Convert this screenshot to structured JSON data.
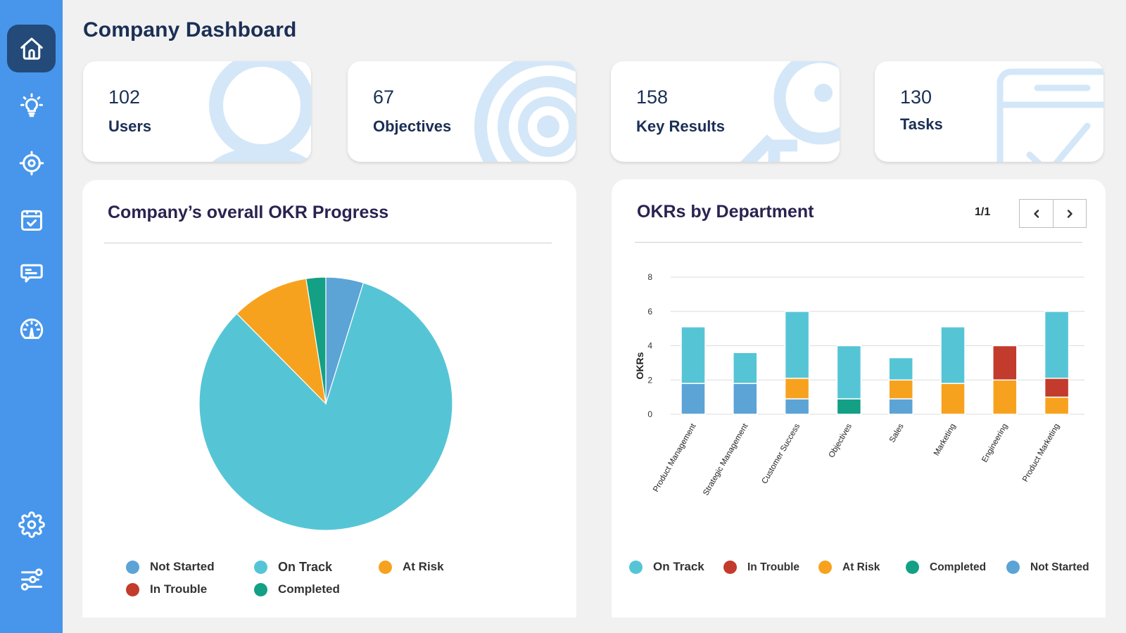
{
  "sidebar": {
    "items": [
      {
        "id": "home",
        "icon": "home-icon",
        "active": true
      },
      {
        "id": "ideas",
        "icon": "lightbulb-icon",
        "active": false
      },
      {
        "id": "objectives",
        "icon": "target-icon",
        "active": false
      },
      {
        "id": "tasks",
        "icon": "calendar-check-icon",
        "active": false
      },
      {
        "id": "feedback",
        "icon": "chat-icon",
        "active": false
      },
      {
        "id": "performance",
        "icon": "gauge-icon",
        "active": false
      },
      {
        "id": "settings",
        "icon": "gear-icon",
        "active": false
      },
      {
        "id": "preferences",
        "icon": "sliders-icon",
        "active": false
      }
    ]
  },
  "header": {
    "title": "Company Dashboard"
  },
  "stats": [
    {
      "value": "102",
      "label": "Users",
      "icon": "user-icon"
    },
    {
      "value": "67",
      "label": "Objectives",
      "icon": "target-icon"
    },
    {
      "value": "158",
      "label": "Key Results",
      "icon": "key-icon"
    },
    {
      "value": "130",
      "label": "Tasks",
      "icon": "task-calendar-icon"
    }
  ],
  "okr_progress": {
    "title": "Company’s overall OKR Progress"
  },
  "okrs_by_department": {
    "title": "OKRs by Department",
    "pager": {
      "text": "1/1",
      "prev": "previous-page",
      "next": "next-page"
    }
  },
  "colors": {
    "on_track": "#55c5d6",
    "in_trouble": "#c23b2c",
    "at_risk": "#f7a21e",
    "completed": "#13a085",
    "not_started": "#5ca3d6",
    "sidebar": "#4796eb",
    "sidebar_active": "#234a78"
  },
  "chart_data": [
    {
      "type": "pie",
      "title": "Company’s overall OKR Progress",
      "labels": [
        "Not Started",
        "On Track",
        "At Risk",
        "In Trouble",
        "Completed"
      ],
      "values": [
        4.8,
        82.8,
        9.9,
        0,
        2.5
      ],
      "unit": "percent",
      "colors": [
        "#5ca3d6",
        "#55c5d6",
        "#f7a21e",
        "#c23b2c",
        "#13a085"
      ],
      "start": "top",
      "direction": "clockwise",
      "legend": "bottom"
    },
    {
      "type": "bar",
      "stacked": true,
      "title": "OKRs by Department",
      "xlabel": "",
      "ylabel": "OKRs",
      "ylim": [
        0,
        8
      ],
      "yticks": [
        0,
        2,
        4,
        6,
        8
      ],
      "grid": true,
      "legend": "bottom",
      "categories": [
        "Product Management",
        "Strategic Management",
        "Customer Success",
        "Objectives",
        "Sales",
        "Marketing",
        "Engineering",
        "Product Marketing"
      ],
      "series": [
        {
          "name": "On Track",
          "color": "#55c5d6",
          "values": [
            3.3,
            1.8,
            3.9,
            3.1,
            1.3,
            3.3,
            0,
            3.9
          ]
        },
        {
          "name": "In Trouble",
          "color": "#c23b2c",
          "values": [
            0,
            0,
            0,
            0,
            0,
            0,
            2.0,
            1.1
          ]
        },
        {
          "name": "At Risk",
          "color": "#f7a21e",
          "values": [
            0,
            0,
            1.2,
            0,
            1.1,
            1.8,
            2.0,
            1.0
          ]
        },
        {
          "name": "Completed",
          "color": "#13a085",
          "values": [
            0,
            0,
            0,
            0.9,
            0,
            0,
            0,
            0
          ]
        },
        {
          "name": "Not Started",
          "color": "#5ca3d6",
          "values": [
            1.8,
            1.8,
            0.9,
            0,
            0.9,
            0,
            0,
            0
          ]
        }
      ],
      "stack_order": [
        "Not Started",
        "Completed",
        "At Risk",
        "In Trouble",
        "On Track"
      ]
    }
  ]
}
